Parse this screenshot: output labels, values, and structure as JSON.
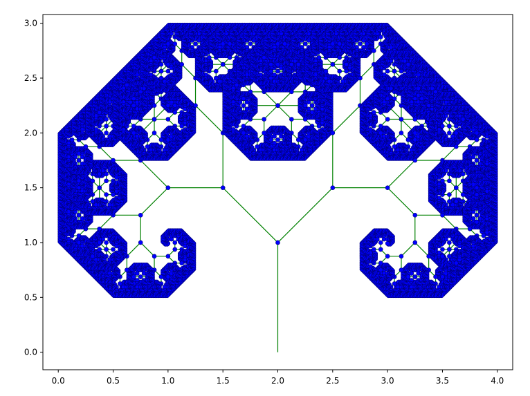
{
  "chart_data": {
    "type": "line",
    "title": "",
    "xlabel": "",
    "ylabel": "",
    "xlim": [
      -0.14,
      4.14
    ],
    "ylim": [
      -0.16,
      3.08
    ],
    "xticks": [
      0.0,
      0.5,
      1.0,
      1.5,
      2.0,
      2.5,
      3.0,
      3.5,
      4.0
    ],
    "yticks": [
      0.0,
      0.5,
      1.0,
      1.5,
      2.0,
      2.5,
      3.0
    ],
    "xtick_labels": [
      "0.0",
      "0.5",
      "1.0",
      "1.5",
      "2.0",
      "2.5",
      "3.0",
      "3.5",
      "4.0"
    ],
    "ytick_labels": [
      "0.0",
      "0.5",
      "1.0",
      "1.5",
      "2.0",
      "2.5",
      "3.0"
    ],
    "grid": false,
    "legend": "none",
    "description_of_data": "Fractal binary tree (H-tree style) with trunk from (2,0) to (2,1); each branch splits at ±45° with length ratio 1/sqrt(2) for 14 levels.",
    "tree": {
      "root": [
        2.0,
        0.0
      ],
      "first_branch_end": [
        2.0,
        1.0
      ],
      "initial_length": 1.0,
      "branch_angle_deg": 45,
      "length_ratio": 0.7071,
      "depth": 14
    },
    "sample_points": [
      {
        "x": 2.0,
        "y": 0.0
      },
      {
        "x": 2.0,
        "y": 1.0
      },
      {
        "x": 1.5,
        "y": 1.5
      },
      {
        "x": 2.5,
        "y": 1.5
      },
      {
        "x": 1.0,
        "y": 1.5
      },
      {
        "x": 1.5,
        "y": 2.0
      },
      {
        "x": 2.5,
        "y": 2.0
      },
      {
        "x": 3.0,
        "y": 1.5
      }
    ],
    "series": [
      {
        "line_color": "#008000",
        "marker_color": "#0000ff",
        "marker_edge": "#00007a"
      }
    ]
  }
}
